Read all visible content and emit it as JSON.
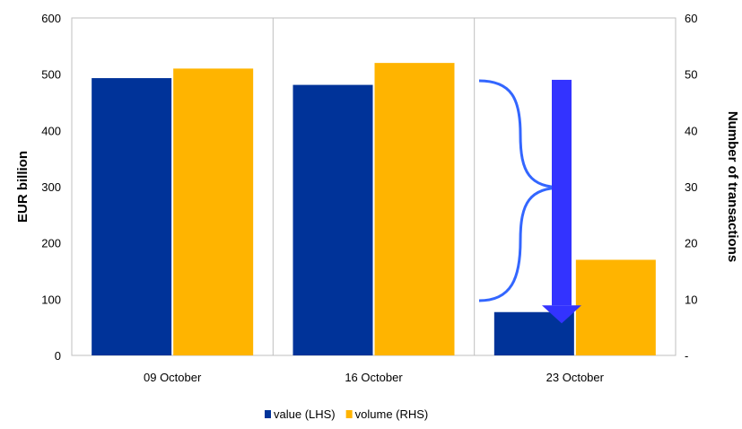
{
  "chart_data": {
    "type": "bar",
    "categories": [
      "09 October",
      "16 October",
      "23 October"
    ],
    "series": [
      {
        "name": "value (LHS)",
        "axis": "left",
        "color": "#003399",
        "values": [
          493,
          481,
          77
        ]
      },
      {
        "name": "volume (RHS)",
        "axis": "right",
        "color": "#FFB400",
        "values": [
          51,
          52,
          17
        ]
      }
    ],
    "ylabel": "EUR billion",
    "ylabel_right": "Number of transactions",
    "ylim": [
      0,
      600
    ],
    "ylim_right": [
      0,
      60
    ],
    "yticks": [
      "0",
      "100",
      "200",
      "300",
      "400",
      "500",
      "600"
    ],
    "yticks_right": [
      "-",
      "10",
      "20",
      "30",
      "40",
      "50",
      "60"
    ],
    "grid": "vertical",
    "legend": "bottom",
    "annotations": [
      {
        "type": "brace",
        "color": "#3366FF"
      },
      {
        "type": "down-arrow",
        "color": "#3333FF",
        "from": 490,
        "to": 57
      }
    ]
  }
}
